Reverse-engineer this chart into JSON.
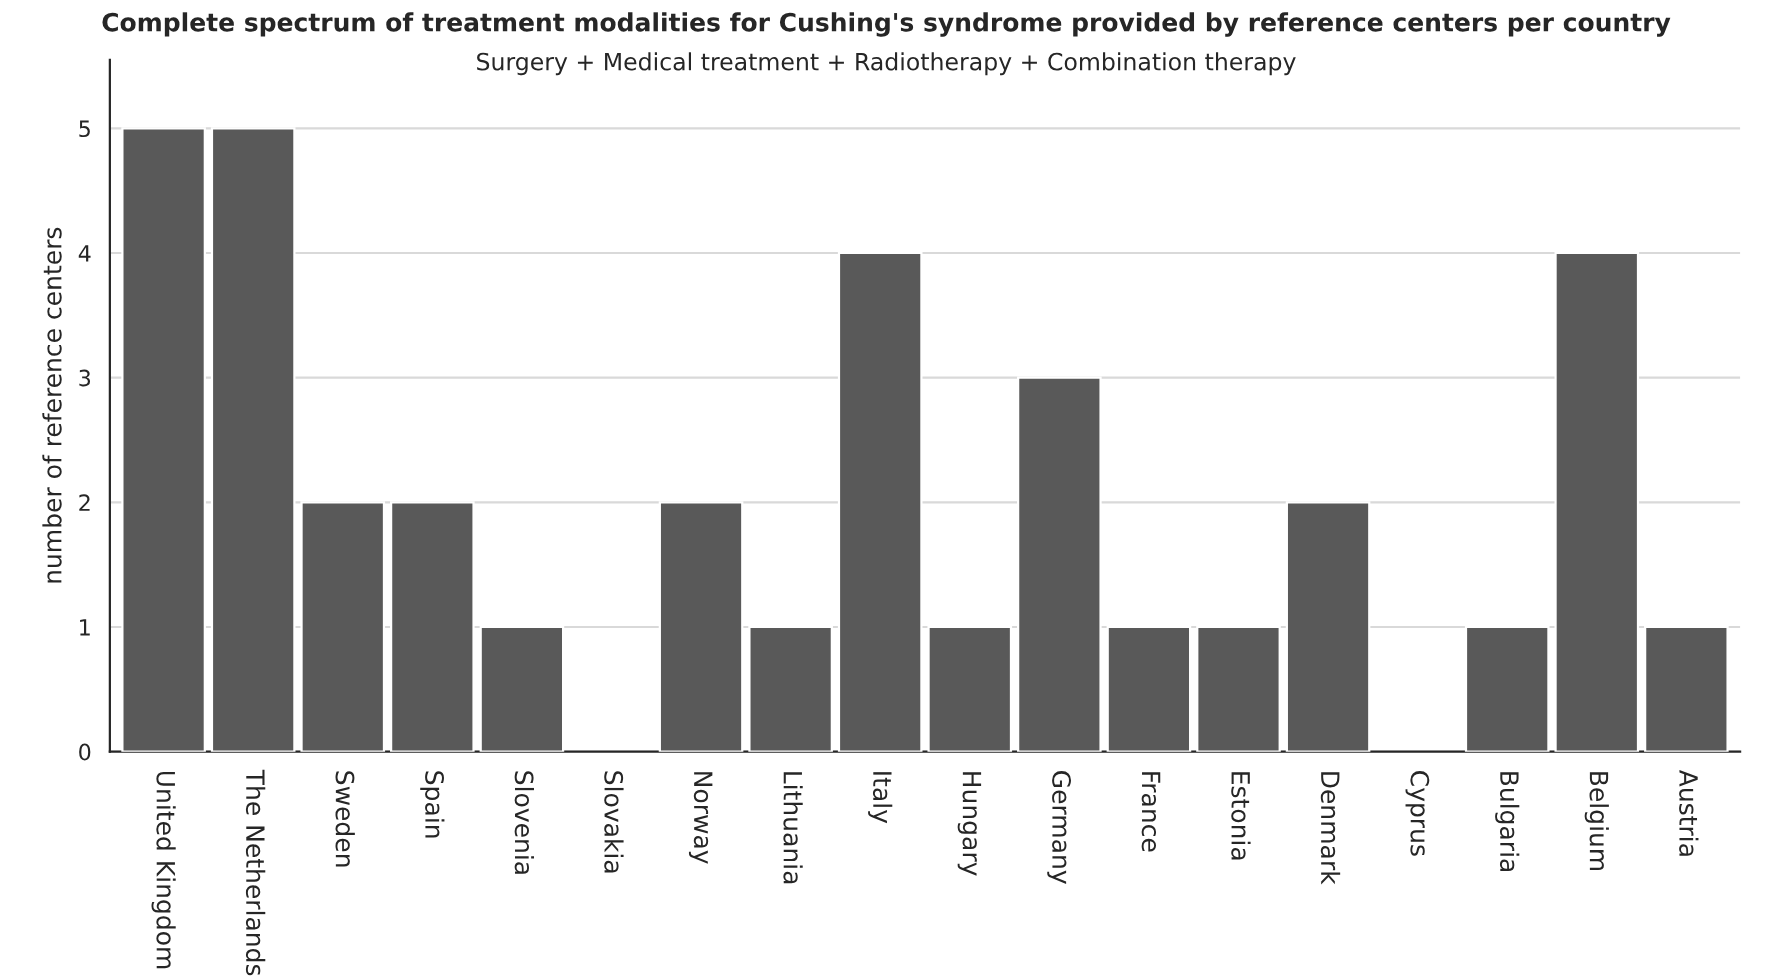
{
  "chart_data": {
    "type": "bar",
    "title": "Complete spectrum of treatment modalities for Cushing's syndrome provided by reference centers per country",
    "subtitle": "Surgery + Medical treatment + Radiotherapy + Combination therapy",
    "ylabel": "number of reference centers",
    "categories": [
      "United Kingdom",
      "The Netherlands",
      "Sweden",
      "Spain",
      "Slovenia",
      "Slovakia",
      "Norway",
      "Lithuania",
      "Italy",
      "Hungary",
      "Germany",
      "France",
      "Estonia",
      "Denmark",
      "Cyprus",
      "Bulgaria",
      "Belgium",
      "Austria"
    ],
    "values": [
      5,
      5,
      2,
      2,
      1,
      0,
      2,
      1,
      4,
      1,
      3,
      1,
      1,
      2,
      0,
      1,
      4,
      1
    ],
    "color": "#595959",
    "ylim": [
      0,
      5.55
    ],
    "yticks": [
      0,
      1,
      2,
      3,
      4,
      5
    ],
    "grid": "y"
  }
}
